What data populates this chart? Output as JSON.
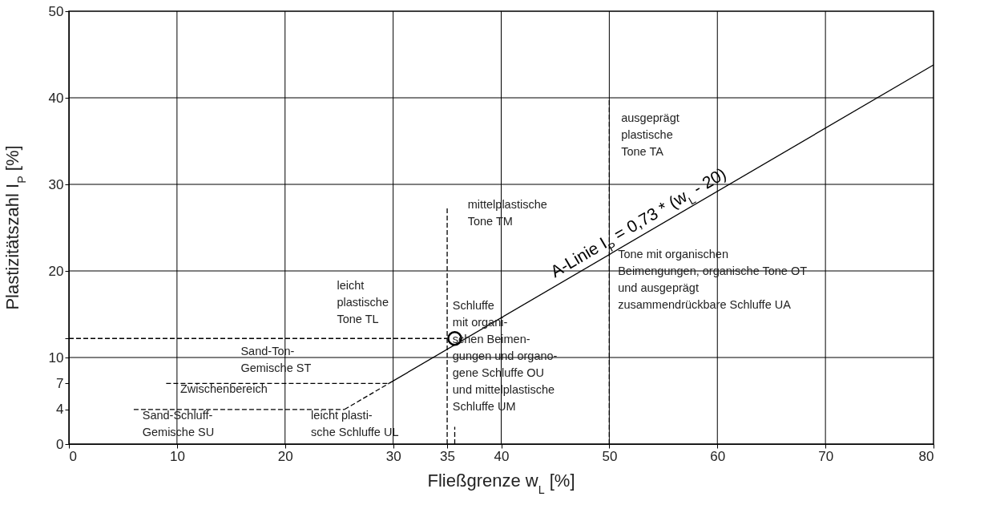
{
  "chart_data": {
    "type": "line",
    "xlabel": "Fließgrenze w$_{L}$ [%]",
    "ylabel": "Plastizitätszahl I$_{P}$ [%]",
    "xlim": [
      0,
      80
    ],
    "ylim": [
      0,
      50
    ],
    "xticks": [
      0,
      10,
      20,
      30,
      35,
      40,
      50,
      60,
      70,
      80
    ],
    "yticks": [
      0,
      4,
      7,
      10,
      {
        "value": 12.2,
        "label": null
      },
      20,
      30,
      40,
      50
    ],
    "grid": false,
    "series": [
      {
        "name": "A-Linie I$_{P}$ = 0,73 * (w$_{L}$ - 20)",
        "color": "#000000",
        "line_style": "solid",
        "x": [
          29.6,
          80
        ],
        "values": [
          7,
          43.8
        ]
      },
      {
        "color": "#000000",
        "line_style": "dashed",
        "x": [
          25.5,
          29.6
        ],
        "values": [
          4,
          7
        ]
      },
      {
        "color": "#000000",
        "line_style": "dashed",
        "x": [
          0,
          35
        ],
        "values": [
          12.2,
          12.2
        ]
      },
      {
        "color": "#000000",
        "line_style": "dashed",
        "x": [
          35,
          35
        ],
        "values": [
          0,
          27.4
        ]
      },
      {
        "color": "#000000",
        "line_style": "dashed",
        "x": [
          50,
          50
        ],
        "values": [
          0,
          40
        ]
      },
      {
        "color": "#000000",
        "line_style": "dashed",
        "x": [
          9,
          29.6
        ],
        "values": [
          7,
          7
        ]
      },
      {
        "color": "#000000",
        "line_style": "dashed",
        "x": [
          6,
          25.5
        ],
        "values": [
          4,
          4
        ]
      },
      {
        "color": "#000000",
        "line_style": "dashed",
        "x": [
          35.7,
          35.7
        ],
        "values": [
          0,
          2
        ]
      },
      {
        "type": "scatter",
        "color": "#000000",
        "marker": "circle",
        "x": [
          35.7
        ],
        "values": [
          12.2
        ]
      }
    ],
    "ref_lines": [
      {
        "axis": "x",
        "value": 10,
        "color": "#000000"
      },
      {
        "axis": "x",
        "value": 20,
        "color": "#000000"
      },
      {
        "axis": "x",
        "value": 30,
        "color": "#000000"
      },
      {
        "axis": "x",
        "value": 40,
        "color": "#000000"
      },
      {
        "axis": "x",
        "value": 50,
        "color": "#000000"
      },
      {
        "axis": "x",
        "value": 60,
        "color": "#000000"
      },
      {
        "axis": "x",
        "value": 70,
        "color": "#000000"
      },
      {
        "axis": "y",
        "value": 10,
        "color": "#000000"
      },
      {
        "axis": "y",
        "value": 20,
        "color": "#000000"
      },
      {
        "axis": "y",
        "value": 30,
        "color": "#000000"
      },
      {
        "axis": "y",
        "value": 40,
        "color": "#000000"
      }
    ],
    "annotations": [
      "ausgeprägt\nplastische\nTone TA",
      "mittelplastische\nTone TM",
      "leicht\nplastische\nTone TL",
      "Sand-Ton-\nGemische ST",
      "Zwischenbereich",
      "Sand-Schluff-\nGemische SU",
      "leicht plasti-\nsche Schluffe UL",
      "Schluffe\nmit organi-\nschen Beimen-\ngungen und organo-\ngene Schluffe OU\nund mittelplastische\nSchluffe UM",
      "Tone mit organischen\nBeimengungen, organische Tone OT\nund ausgeprägt\nzusammendrückbare Schluffe UA"
    ]
  }
}
